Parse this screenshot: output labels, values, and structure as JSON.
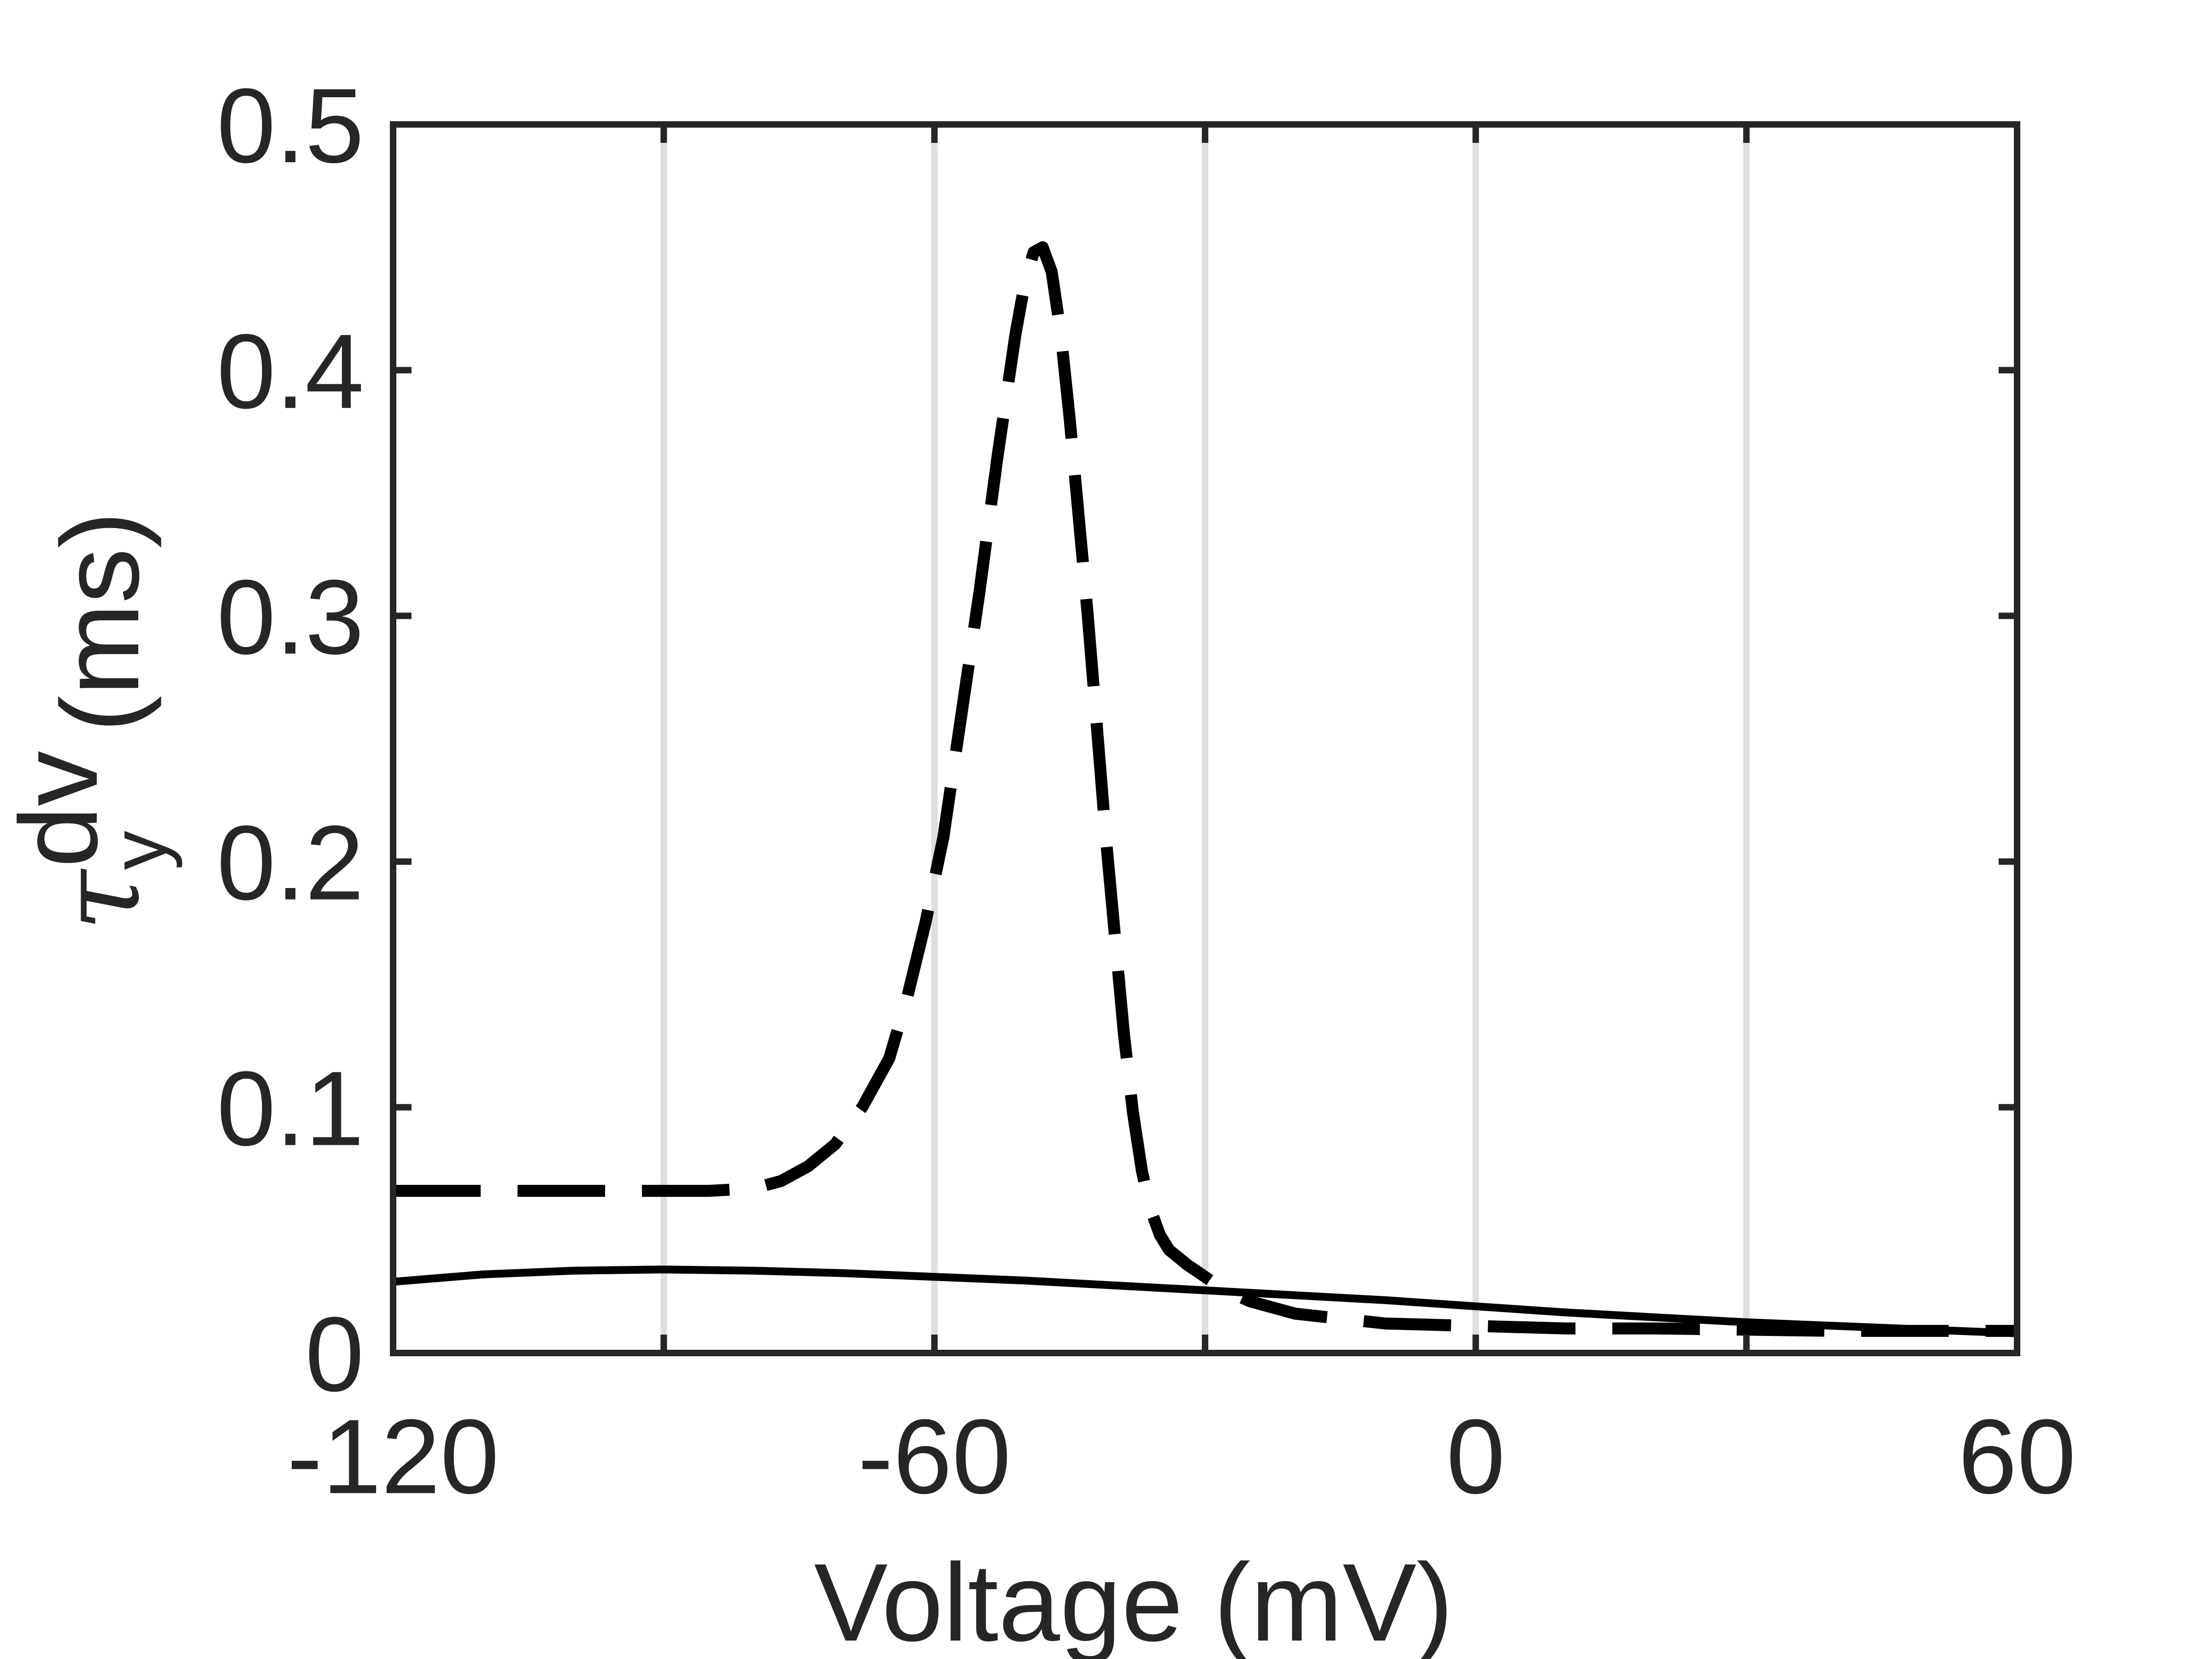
{
  "chart_data": {
    "type": "line",
    "xlabel": "Voltage (mV)",
    "ylabel": {
      "symbol": "τ",
      "subscript": "y",
      "superscript": "dv",
      "unit": "(ms)"
    },
    "xlim": [
      -120,
      60
    ],
    "ylim": [
      0,
      0.5
    ],
    "xticks": [
      -120,
      -60,
      0,
      60
    ],
    "xtick_labels": [
      "-120",
      "-60",
      "0",
      "60"
    ],
    "yticks": [
      0,
      0.1,
      0.2,
      0.3,
      0.4,
      0.5
    ],
    "ytick_labels": [
      "0",
      "0.1",
      "0.2",
      "0.3",
      "0.4",
      "0.5"
    ],
    "vertical_gridlines_at": [
      -90,
      -60,
      -30,
      0,
      30
    ],
    "horizontal_grid": false,
    "series": [
      {
        "style": "solid",
        "color": "#000000",
        "x": [
          -120,
          -110,
          -100,
          -90,
          -80,
          -70,
          -60,
          -50,
          -40,
          -30,
          -20,
          -10,
          0,
          10,
          20,
          30,
          40,
          50,
          60
        ],
        "y": [
          0.029,
          0.032,
          0.0335,
          0.034,
          0.0335,
          0.0325,
          0.031,
          0.0295,
          0.0275,
          0.0255,
          0.0235,
          0.0215,
          0.019,
          0.0165,
          0.0145,
          0.0125,
          0.011,
          0.0095,
          0.008
        ]
      },
      {
        "style": "dashed",
        "color": "#000000",
        "x": [
          -120,
          -110,
          -100,
          -90,
          -85,
          -80,
          -77,
          -74,
          -71,
          -68,
          -65,
          -63,
          -61,
          -59,
          -57,
          -55,
          -53,
          -51,
          -50,
          -49,
          -48,
          -47,
          -46,
          -45,
          -44,
          -43,
          -42,
          -41,
          -40,
          -39,
          -38,
          -37,
          -36,
          -35,
          -34,
          -32,
          -30,
          -28,
          -25,
          -20,
          -10,
          0,
          10,
          20,
          30,
          40,
          50,
          60
        ],
        "y": [
          0.066,
          0.066,
          0.066,
          0.066,
          0.066,
          0.067,
          0.07,
          0.076,
          0.085,
          0.1,
          0.12,
          0.145,
          0.175,
          0.21,
          0.26,
          0.31,
          0.365,
          0.415,
          0.435,
          0.448,
          0.45,
          0.44,
          0.415,
          0.38,
          0.34,
          0.3,
          0.255,
          0.21,
          0.17,
          0.13,
          0.098,
          0.074,
          0.058,
          0.048,
          0.042,
          0.036,
          0.031,
          0.026,
          0.021,
          0.016,
          0.012,
          0.011,
          0.01,
          0.01,
          0.0095,
          0.009,
          0.009,
          0.009
        ]
      }
    ]
  }
}
